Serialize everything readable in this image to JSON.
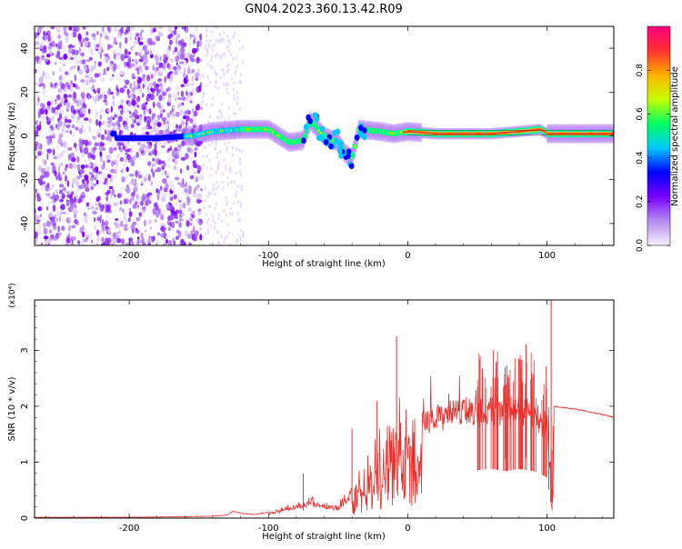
{
  "title": "GN04.2023.360.13.42.R09",
  "chart_data": [
    {
      "type": "heatmap",
      "xlabel": "Height of straight line (km)",
      "ylabel": "Frequency (Hz)",
      "xlim": [
        -268,
        148
      ],
      "ylim": [
        -50,
        50
      ],
      "xticks": [
        -200,
        -100,
        0,
        100
      ],
      "yticks": [
        -40,
        -20,
        0,
        20,
        40
      ],
      "colorbar": {
        "label": "Normalized spectral amplitude",
        "range": [
          0.0,
          1.0
        ],
        "ticks": [
          "0.0",
          "0.2",
          "0.4",
          "0.6",
          "0.8"
        ],
        "colors": [
          "#f6f0fb",
          "#b58cf0",
          "#7a00ff",
          "#0000ff",
          "#00c8ff",
          "#00ff60",
          "#c8ff00",
          "#ffb000",
          "#ff3030",
          "#ff0080"
        ]
      },
      "ridge_frequency_hz": [
        [
          -210,
          -1
        ],
        [
          -180,
          -1
        ],
        [
          -155,
          0
        ],
        [
          -140,
          2
        ],
        [
          -120,
          3
        ],
        [
          -100,
          3
        ],
        [
          -90,
          -1
        ],
        [
          -85,
          -3
        ],
        [
          -75,
          -2
        ],
        [
          -70,
          7
        ],
        [
          -60,
          0
        ],
        [
          -50,
          -3
        ],
        [
          -45,
          -8
        ],
        [
          -40,
          -10
        ],
        [
          -35,
          3
        ],
        [
          -20,
          2
        ],
        [
          -10,
          1
        ],
        [
          0,
          2
        ],
        [
          20,
          1
        ],
        [
          40,
          1
        ],
        [
          60,
          1
        ],
        [
          80,
          2
        ],
        [
          95,
          3
        ],
        [
          100,
          1
        ],
        [
          148,
          1
        ]
      ]
    },
    {
      "type": "line",
      "xlabel": "Height of straight line (km)",
      "ylabel": "SNR (10 * v/v)",
      "multiplier": "(x10⁴)",
      "xlim": [
        -268,
        148
      ],
      "ylim": [
        0,
        3.9
      ],
      "xticks": [
        -200,
        -100,
        0,
        100
      ],
      "yticks": [
        0,
        1,
        2,
        3
      ],
      "series": [
        {
          "color": "#e8302e",
          "x": [
            -268,
            -240,
            -200,
            -160,
            -140,
            -130,
            -125,
            -120,
            -110,
            -100,
            -90,
            -80,
            -70,
            -60,
            -50,
            -40,
            -35,
            -30,
            -25,
            -20,
            -15,
            -10,
            -8,
            -5,
            0,
            10,
            20,
            30,
            40,
            50,
            60,
            70,
            80,
            90,
            95,
            100,
            104,
            105,
            110,
            120,
            130,
            140,
            148
          ],
          "y": [
            0.01,
            0.01,
            0.01,
            0.02,
            0.03,
            0.05,
            0.12,
            0.08,
            0.06,
            0.1,
            0.15,
            0.25,
            0.3,
            0.25,
            0.2,
            0.5,
            0.7,
            0.9,
            1.1,
            1.3,
            1.4,
            1.5,
            2.0,
            1.7,
            1.8,
            1.9,
            2.0,
            2.1,
            2.2,
            2.15,
            2.2,
            2.1,
            2.2,
            2.1,
            2.0,
            1.8,
            0.2,
            2.0,
            1.98,
            1.95,
            1.9,
            1.85,
            1.8
          ]
        }
      ],
      "peaks": [
        [
          -8,
          3.25
        ],
        [
          103,
          3.9
        ],
        [
          85,
          3.1
        ],
        [
          70,
          2.7
        ],
        [
          -22,
          2.1
        ],
        [
          -40,
          1.6
        ],
        [
          -75,
          0.8
        ]
      ]
    }
  ]
}
